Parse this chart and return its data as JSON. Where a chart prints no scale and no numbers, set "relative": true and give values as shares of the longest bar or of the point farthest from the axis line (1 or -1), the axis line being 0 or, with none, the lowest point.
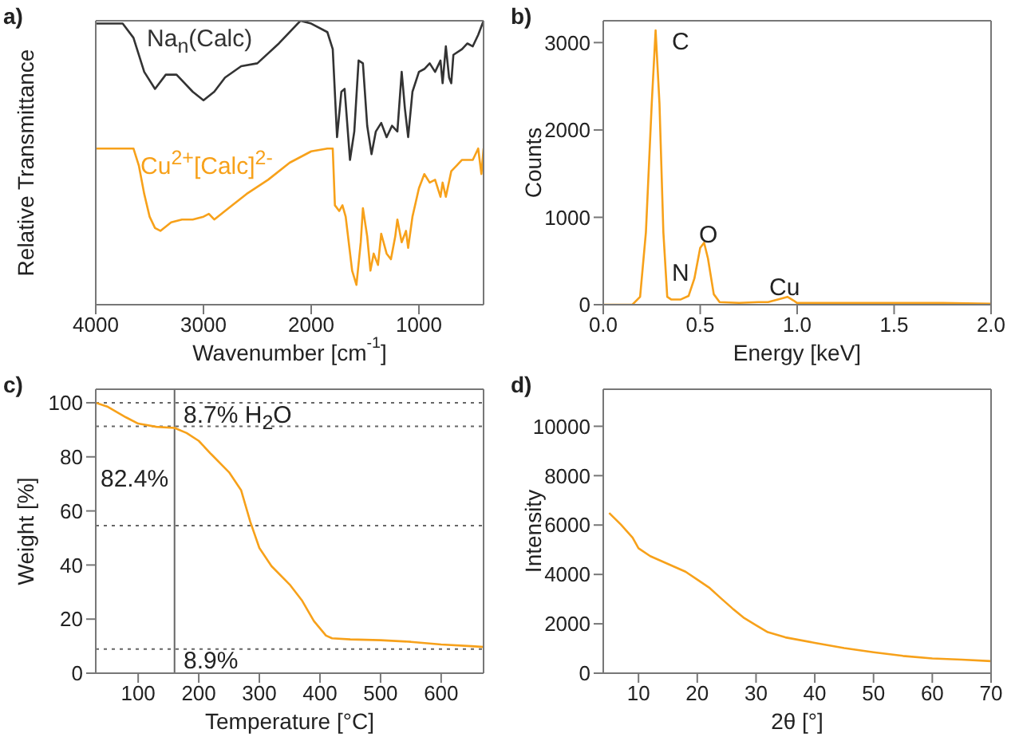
{
  "chart_data": [
    {
      "type": "line",
      "relative": true,
      "xlabel": "Wavenumber [cm$^{-1}$]",
      "ylabel": "Relative Transmittance",
      "xlim": [
        4000,
        400
      ],
      "xticks": [
        4000,
        3000,
        2000,
        1000
      ],
      "annotations": [
        "a)"
      ],
      "series": [
        {
          "name": "Na$_{n}$(Calc)",
          "color": "#333333",
          "x": [
            4000,
            3750,
            3650,
            3550,
            3450,
            3350,
            3250,
            3100,
            3000,
            2900,
            2800,
            2650,
            2500,
            2300,
            2100,
            2000,
            1850,
            1800,
            1760,
            1720,
            1690,
            1640,
            1600,
            1560,
            1520,
            1480,
            1440,
            1400,
            1350,
            1300,
            1250,
            1200,
            1160,
            1130,
            1100,
            1060,
            1000,
            950,
            900,
            850,
            800,
            780,
            750,
            720,
            700,
            680,
            600,
            550,
            500,
            450,
            400
          ],
          "values": [
            0.99,
            0.99,
            0.94,
            0.82,
            0.76,
            0.81,
            0.81,
            0.75,
            0.72,
            0.75,
            0.8,
            0.84,
            0.85,
            0.92,
            1.0,
            0.99,
            0.96,
            0.9,
            0.59,
            0.75,
            0.76,
            0.51,
            0.61,
            0.86,
            0.85,
            0.63,
            0.53,
            0.61,
            0.64,
            0.59,
            0.63,
            0.61,
            0.82,
            0.69,
            0.59,
            0.75,
            0.82,
            0.83,
            0.85,
            0.82,
            0.86,
            0.78,
            0.91,
            0.8,
            0.78,
            0.88,
            0.9,
            0.92,
            0.91,
            0.95,
            1.0
          ]
        },
        {
          "name": "Cu$^{2+}$[Calc]$^{2-}$",
          "color": "#f7a11a",
          "x": [
            4000,
            3750,
            3650,
            3600,
            3550,
            3500,
            3450,
            3400,
            3300,
            3200,
            3100,
            3000,
            2950,
            2900,
            2800,
            2600,
            2400,
            2200,
            2000,
            1850,
            1800,
            1780,
            1740,
            1710,
            1680,
            1620,
            1580,
            1540,
            1520,
            1480,
            1450,
            1420,
            1380,
            1350,
            1300,
            1260,
            1220,
            1200,
            1160,
            1120,
            1100,
            1060,
            1000,
            950,
            900,
            850,
            800,
            780,
            750,
            700,
            650,
            600,
            500,
            450,
            420,
            400
          ],
          "values": [
            0.55,
            0.55,
            0.55,
            0.49,
            0.39,
            0.31,
            0.27,
            0.26,
            0.29,
            0.3,
            0.3,
            0.31,
            0.32,
            0.3,
            0.33,
            0.39,
            0.44,
            0.5,
            0.54,
            0.55,
            0.55,
            0.35,
            0.33,
            0.35,
            0.31,
            0.12,
            0.07,
            0.22,
            0.34,
            0.24,
            0.12,
            0.18,
            0.14,
            0.25,
            0.18,
            0.16,
            0.24,
            0.3,
            0.22,
            0.26,
            0.2,
            0.31,
            0.41,
            0.46,
            0.43,
            0.44,
            0.38,
            0.43,
            0.38,
            0.47,
            0.49,
            0.51,
            0.51,
            0.55,
            0.46,
            0.55
          ]
        }
      ]
    },
    {
      "type": "line",
      "xlabel": "Energy [keV]",
      "ylabel": "Counts",
      "xlim": [
        0,
        2
      ],
      "ylim": [
        0,
        3250
      ],
      "xticks": [
        {
          "value": 0,
          "label": "0.0"
        },
        {
          "value": 0.5,
          "label": "0.5"
        },
        {
          "value": 1,
          "label": "1.0"
        },
        {
          "value": 1.5,
          "label": "1.5"
        },
        {
          "value": 2,
          "label": "2.0"
        }
      ],
      "yticks": [
        0,
        1000,
        2000,
        3000
      ],
      "annotations": [
        "b)",
        "C",
        "N",
        "O",
        "Cu"
      ],
      "series": [
        {
          "color": "#f7a11a",
          "x": [
            0,
            0.15,
            0.19,
            0.22,
            0.25,
            0.27,
            0.29,
            0.31,
            0.33,
            0.35,
            0.4,
            0.44,
            0.47,
            0.5,
            0.52,
            0.54,
            0.57,
            0.6,
            0.7,
            0.8,
            0.85,
            0.9,
            0.95,
            0.98,
            1.0,
            1.2,
            1.5,
            1.75,
            2.0
          ],
          "values": [
            0,
            0,
            90,
            830,
            2300,
            3140,
            2300,
            830,
            90,
            60,
            60,
            100,
            300,
            650,
            710,
            530,
            120,
            30,
            20,
            30,
            30,
            60,
            90,
            50,
            20,
            20,
            20,
            20,
            10
          ]
        }
      ]
    },
    {
      "type": "line",
      "xlabel": "Temperature [°C]",
      "ylabel": "Weight [%]",
      "xlim": [
        30,
        670
      ],
      "ylim": [
        0,
        105
      ],
      "xticks": [
        100,
        200,
        300,
        400,
        500,
        600
      ],
      "yticks": [
        0,
        20,
        40,
        60,
        80,
        100
      ],
      "annotations": [
        "c)",
        "8.7% H$_{2}$O",
        "82.4%",
        "8.9%"
      ],
      "ref_lines": [
        {
          "axis": "y",
          "value": 100,
          "color": "#666666",
          "line_style": "dotted"
        },
        {
          "axis": "y",
          "value": 91.3,
          "color": "#666666",
          "line_style": "dotted"
        },
        {
          "axis": "y",
          "value": 54.6,
          "color": "#666666",
          "line_style": "dotted"
        },
        {
          "axis": "y",
          "value": 8.9,
          "color": "#666666",
          "line_style": "dotted"
        },
        {
          "axis": "x",
          "value": 160,
          "color": "#666666",
          "line_style": "solid"
        }
      ],
      "series": [
        {
          "color": "#f7a11a",
          "x": [
            30,
            50,
            80,
            100,
            130,
            160,
            180,
            200,
            220,
            250,
            270,
            285,
            300,
            320,
            350,
            370,
            390,
            410,
            420,
            450,
            500,
            550,
            600,
            650,
            670
          ],
          "values": [
            100,
            98.5,
            94.6,
            92.3,
            91.1,
            90.7,
            88.8,
            85.9,
            81.1,
            74.3,
            67.6,
            56,
            46.3,
            39.6,
            32.8,
            27,
            19.3,
            13.9,
            12.9,
            12.5,
            12.2,
            11.6,
            10.6,
            10,
            9.7
          ]
        }
      ]
    },
    {
      "type": "line",
      "xlabel": "2θ [°]",
      "ylabel": "Intensity",
      "xlim": [
        4,
        70
      ],
      "ylim": [
        0,
        11500
      ],
      "xticks": [
        10,
        20,
        30,
        40,
        50,
        60,
        70
      ],
      "yticks": [
        0,
        2000,
        4000,
        6000,
        8000,
        10000
      ],
      "annotations": [
        "d)"
      ],
      "series": [
        {
          "color": "#f7a11a",
          "x": [
            5,
            7,
            9,
            10,
            12,
            14,
            16,
            18,
            20,
            22,
            24,
            26,
            28,
            30,
            32,
            35,
            40,
            45,
            50,
            55,
            60,
            65,
            70
          ],
          "values": [
            6490,
            6020,
            5490,
            5060,
            4740,
            4530,
            4320,
            4110,
            3790,
            3470,
            3040,
            2620,
            2230,
            1940,
            1660,
            1450,
            1230,
            1020,
            850,
            700,
            600,
            550,
            490
          ]
        }
      ]
    }
  ]
}
